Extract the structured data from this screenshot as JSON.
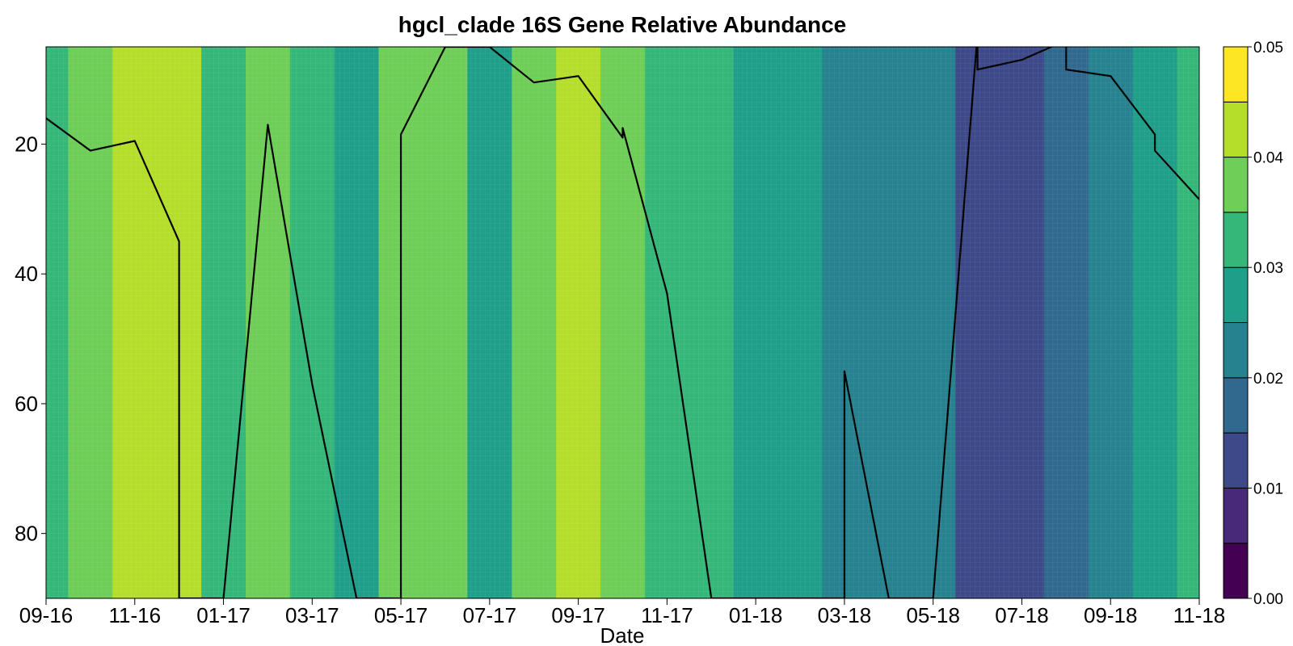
{
  "chart_data": {
    "type": "heatmap",
    "title": "hgcl_clade 16S Gene Relative Abundance",
    "xlabel": "Date",
    "ylabel": "",
    "x_ticks": [
      "09-16",
      "11-16",
      "01-17",
      "03-17",
      "05-17",
      "07-17",
      "09-17",
      "11-17",
      "01-18",
      "03-18",
      "05-18",
      "07-18",
      "09-18",
      "11-18"
    ],
    "y_ticks": [
      20,
      40,
      60,
      80
    ],
    "ylim": [
      90,
      5
    ],
    "colorbar": {
      "ticks": [
        "0.00",
        "0.01",
        "0.02",
        "0.03",
        "0.04",
        "0.05"
      ],
      "levels": [
        0,
        0.005,
        0.01,
        0.015,
        0.02,
        0.025,
        0.03,
        0.035,
        0.04,
        0.045,
        0.05
      ],
      "colors": [
        "#440154",
        "#482878",
        "#3e4989",
        "#31688e",
        "#26828e",
        "#1f9e89",
        "#35b779",
        "#6ece58",
        "#b5de2b",
        "#fde725"
      ]
    },
    "line": {
      "name": "",
      "points": [
        [
          "09-16",
          16
        ],
        [
          "10-16",
          21
        ],
        [
          "11-16",
          19.5
        ],
        [
          "12-16",
          35
        ],
        [
          "12-16",
          90
        ],
        [
          "01-17",
          90
        ],
        [
          "02-17",
          17
        ],
        [
          "03-17",
          57
        ],
        [
          "04-17",
          90
        ],
        [
          "05-17",
          90
        ],
        [
          "05-17",
          18.5
        ],
        [
          "06-17",
          5
        ],
        [
          "07-17",
          5
        ],
        [
          "07-17",
          4
        ],
        [
          "07-17",
          5
        ],
        [
          "08-17",
          10.5
        ],
        [
          "09-17",
          9.5
        ],
        [
          "10-17",
          19
        ],
        [
          "10-17",
          17.5
        ],
        [
          "11-17",
          43
        ],
        [
          "12-17",
          90
        ],
        [
          "03-18",
          90
        ],
        [
          "03-18",
          55
        ],
        [
          "04-18",
          90
        ],
        [
          "05-18",
          90
        ],
        [
          "06-18",
          3
        ],
        [
          "06-18",
          8.5
        ],
        [
          "07-18",
          7
        ],
        [
          "08-18",
          4
        ],
        [
          "08-18",
          8.5
        ],
        [
          "09-18",
          9.5
        ],
        [
          "10-18",
          18.5
        ],
        [
          "10-18",
          21
        ],
        [
          "11-18",
          28.5
        ]
      ]
    },
    "depth_bands": [
      {
        "y_top": 5,
        "y_bottom": 90,
        "x": [
          "09-16",
          "10-16",
          "11-16",
          "12-16",
          "01-17",
          "02-17",
          "03-17",
          "04-17",
          "05-17",
          "06-17",
          "07-17",
          "08-17",
          "09-17",
          "10-17",
          "11-17",
          "12-17",
          "01-18",
          "02-18",
          "03-18",
          "04-18",
          "05-18",
          "06-18",
          "07-18",
          "08-18",
          "09-18",
          "10-18",
          "11-18"
        ],
        "values": [
          0.032,
          0.038,
          0.043,
          0.041,
          0.033,
          0.039,
          0.031,
          0.028,
          0.038,
          0.036,
          0.029,
          0.037,
          0.042,
          0.036,
          0.031,
          0.03,
          0.028,
          0.026,
          0.022,
          0.021,
          0.024,
          0.014,
          0.011,
          0.017,
          0.02,
          0.026,
          0.03
        ]
      }
    ]
  }
}
